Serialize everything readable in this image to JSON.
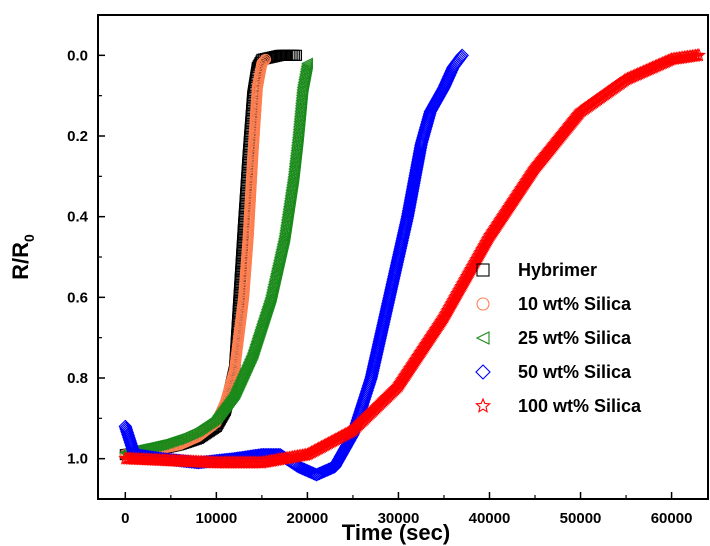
{
  "chart_data": {
    "type": "scatter",
    "title": "",
    "xlabel": "Time (sec)",
    "ylabel_main": "R/R",
    "ylabel_sub": "0",
    "xlim": [
      -3000,
      64000
    ],
    "ylim": [
      -0.1,
      1.1
    ],
    "y_inverted": true,
    "xticks": [
      0,
      10000,
      20000,
      30000,
      40000,
      50000,
      60000
    ],
    "xtick_labels": [
      "0",
      "10000",
      "20000",
      "30000",
      "40000",
      "50000",
      "60000"
    ],
    "yticks": [
      0.0,
      0.2,
      0.4,
      0.6,
      0.8,
      1.0
    ],
    "ytick_labels": [
      "0.0",
      "0.2",
      "0.4",
      "0.6",
      "0.8",
      "1.0"
    ],
    "grid": false,
    "legend_position": "bottom-right",
    "series": [
      {
        "name": "Hybrimer",
        "color": "#000000",
        "marker": "square",
        "points": [
          [
            0,
            0.99
          ],
          [
            2000,
            0.985
          ],
          [
            4000,
            0.975
          ],
          [
            6000,
            0.965
          ],
          [
            8000,
            0.95
          ],
          [
            10000,
            0.92
          ],
          [
            11000,
            0.88
          ],
          [
            12000,
            0.78
          ],
          [
            12500,
            0.6
          ],
          [
            13000,
            0.42
          ],
          [
            13500,
            0.25
          ],
          [
            14000,
            0.1
          ],
          [
            14500,
            0.03
          ],
          [
            15000,
            0.01
          ],
          [
            16000,
            0.005
          ],
          [
            17000,
            0.0
          ],
          [
            18000,
            0.0
          ],
          [
            18800,
            0.0
          ]
        ]
      },
      {
        "name": "10 wt% Silica",
        "color": "#ff7f50",
        "marker": "circle",
        "points": [
          [
            0,
            0.99
          ],
          [
            2000,
            0.985
          ],
          [
            4000,
            0.975
          ],
          [
            6000,
            0.965
          ],
          [
            8000,
            0.945
          ],
          [
            10000,
            0.91
          ],
          [
            11000,
            0.86
          ],
          [
            12000,
            0.78
          ],
          [
            13000,
            0.6
          ],
          [
            13500,
            0.45
          ],
          [
            14000,
            0.25
          ],
          [
            14500,
            0.08
          ],
          [
            15000,
            0.02
          ],
          [
            15400,
            0.01
          ]
        ]
      },
      {
        "name": "25 wt% Silica",
        "color": "#1a8a1a",
        "marker": "triangle-left",
        "points": [
          [
            0,
            0.985
          ],
          [
            2000,
            0.975
          ],
          [
            4000,
            0.965
          ],
          [
            6000,
            0.95
          ],
          [
            8000,
            0.93
          ],
          [
            10000,
            0.9
          ],
          [
            12000,
            0.84
          ],
          [
            14000,
            0.74
          ],
          [
            16000,
            0.6
          ],
          [
            17500,
            0.45
          ],
          [
            18500,
            0.3
          ],
          [
            19000,
            0.2
          ],
          [
            19500,
            0.08
          ],
          [
            20000,
            0.02
          ]
        ]
      },
      {
        "name": "50 wt% Silica",
        "color": "#0000ff",
        "marker": "diamond",
        "points": [
          [
            0,
            0.92
          ],
          [
            1000,
            0.99
          ],
          [
            4000,
            1.0
          ],
          [
            8000,
            1.01
          ],
          [
            12000,
            1.0
          ],
          [
            15000,
            0.99
          ],
          [
            17000,
            0.99
          ],
          [
            19000,
            1.02
          ],
          [
            21000,
            1.04
          ],
          [
            23000,
            1.02
          ],
          [
            25000,
            0.94
          ],
          [
            27000,
            0.8
          ],
          [
            29000,
            0.6
          ],
          [
            31000,
            0.4
          ],
          [
            32500,
            0.22
          ],
          [
            33500,
            0.14
          ],
          [
            35000,
            0.08
          ],
          [
            36000,
            0.03
          ],
          [
            37000,
            0.0
          ]
        ]
      },
      {
        "name": "100 wt% Silica",
        "color": "#ff0000",
        "marker": "star",
        "points": [
          [
            0,
            1.0
          ],
          [
            5000,
            1.005
          ],
          [
            10000,
            1.01
          ],
          [
            15000,
            1.01
          ],
          [
            20000,
            0.99
          ],
          [
            25000,
            0.93
          ],
          [
            30000,
            0.82
          ],
          [
            35000,
            0.65
          ],
          [
            40000,
            0.45
          ],
          [
            45000,
            0.28
          ],
          [
            50000,
            0.14
          ],
          [
            55000,
            0.06
          ],
          [
            60000,
            0.01
          ],
          [
            63000,
            0.0
          ]
        ]
      }
    ]
  }
}
